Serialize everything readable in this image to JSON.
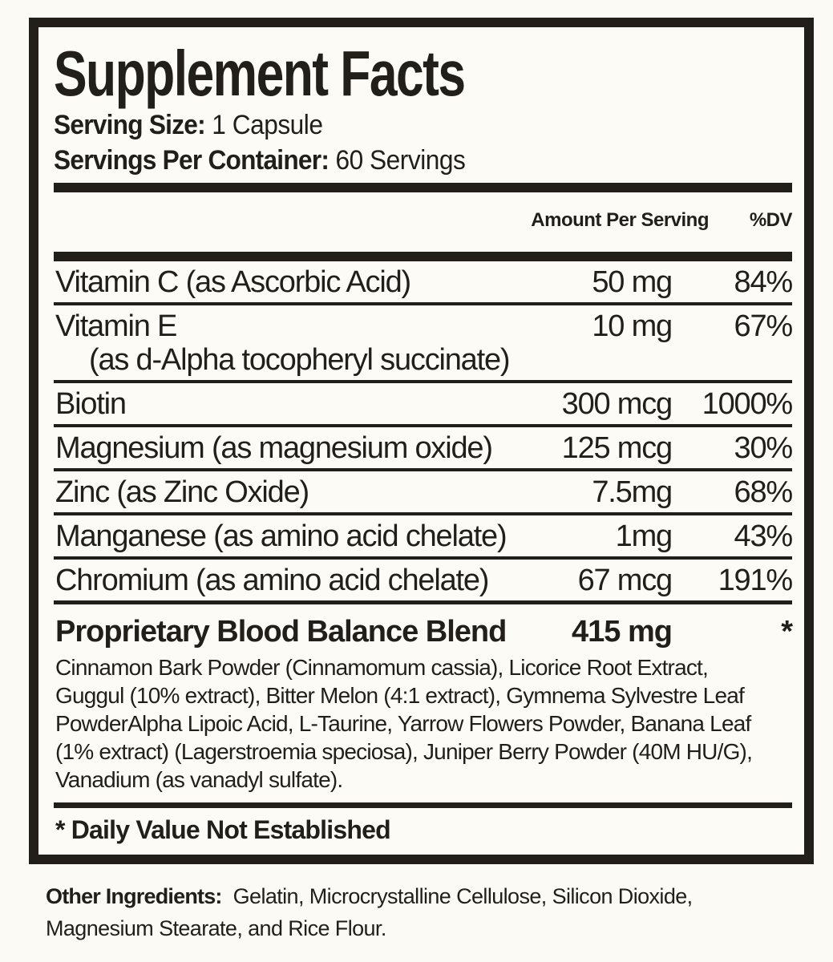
{
  "colors": {
    "ink": "#221f1a",
    "background": "#fbfaf4"
  },
  "label": {
    "title": "Supplement Facts",
    "serving_size_label": "Serving Size:",
    "serving_size_value": "1 Capsule",
    "servings_per_container_label": "Servings Per Container:",
    "servings_per_container_value": "60 Servings",
    "columns": {
      "amount": "Amount Per Serving",
      "dv": "%DV"
    },
    "rows": [
      {
        "name": "Vitamin C (as Ascorbic Acid)",
        "amount": "50 mg",
        "dv": "84%"
      },
      {
        "name": "Vitamin E",
        "name2": "(as d-Alpha tocopheryl succinate)",
        "amount": "10 mg",
        "dv": "67%"
      },
      {
        "name": "Biotin",
        "amount": "300 mcg",
        "dv": "1000%"
      },
      {
        "name": "Magnesium (as magnesium oxide)",
        "amount": "125 mcg",
        "dv": "30%"
      },
      {
        "name": "Zinc (as Zinc Oxide)",
        "amount": "7.5mg",
        "dv": "68%"
      },
      {
        "name": "Manganese (as amino acid chelate)",
        "amount": "1mg",
        "dv": "43%"
      },
      {
        "name": "Chromium (as amino acid chelate)",
        "amount": "67 mcg",
        "dv": "191%"
      }
    ],
    "blend": {
      "name": "Proprietary Blood Balance Blend",
      "amount": "415 mg",
      "dv": "*",
      "description": "Cinnamon Bark Powder (Cinnamomum cassia), Licorice Root Extract, Guggul (10% extract), Bitter Melon (4:1 extract), Gymnema Sylvestre Leaf PowderAlpha Lipoic Acid, L-Taurine, Yarrow Flowers Powder, Banana Leaf (1% extract) (Lagerstroemia speciosa), Juniper Berry Powder (40M HU/G), Vanadium (as vanadyl sulfate)."
    },
    "footnote": "* Daily Value Not Established"
  },
  "footer": {
    "other_ingredients_label": "Other Ingredients:",
    "other_ingredients_value": "Gelatin, Microcrystalline Cellulose, Silicon Dioxide, Magnesium Stearate, and Rice Flour."
  }
}
